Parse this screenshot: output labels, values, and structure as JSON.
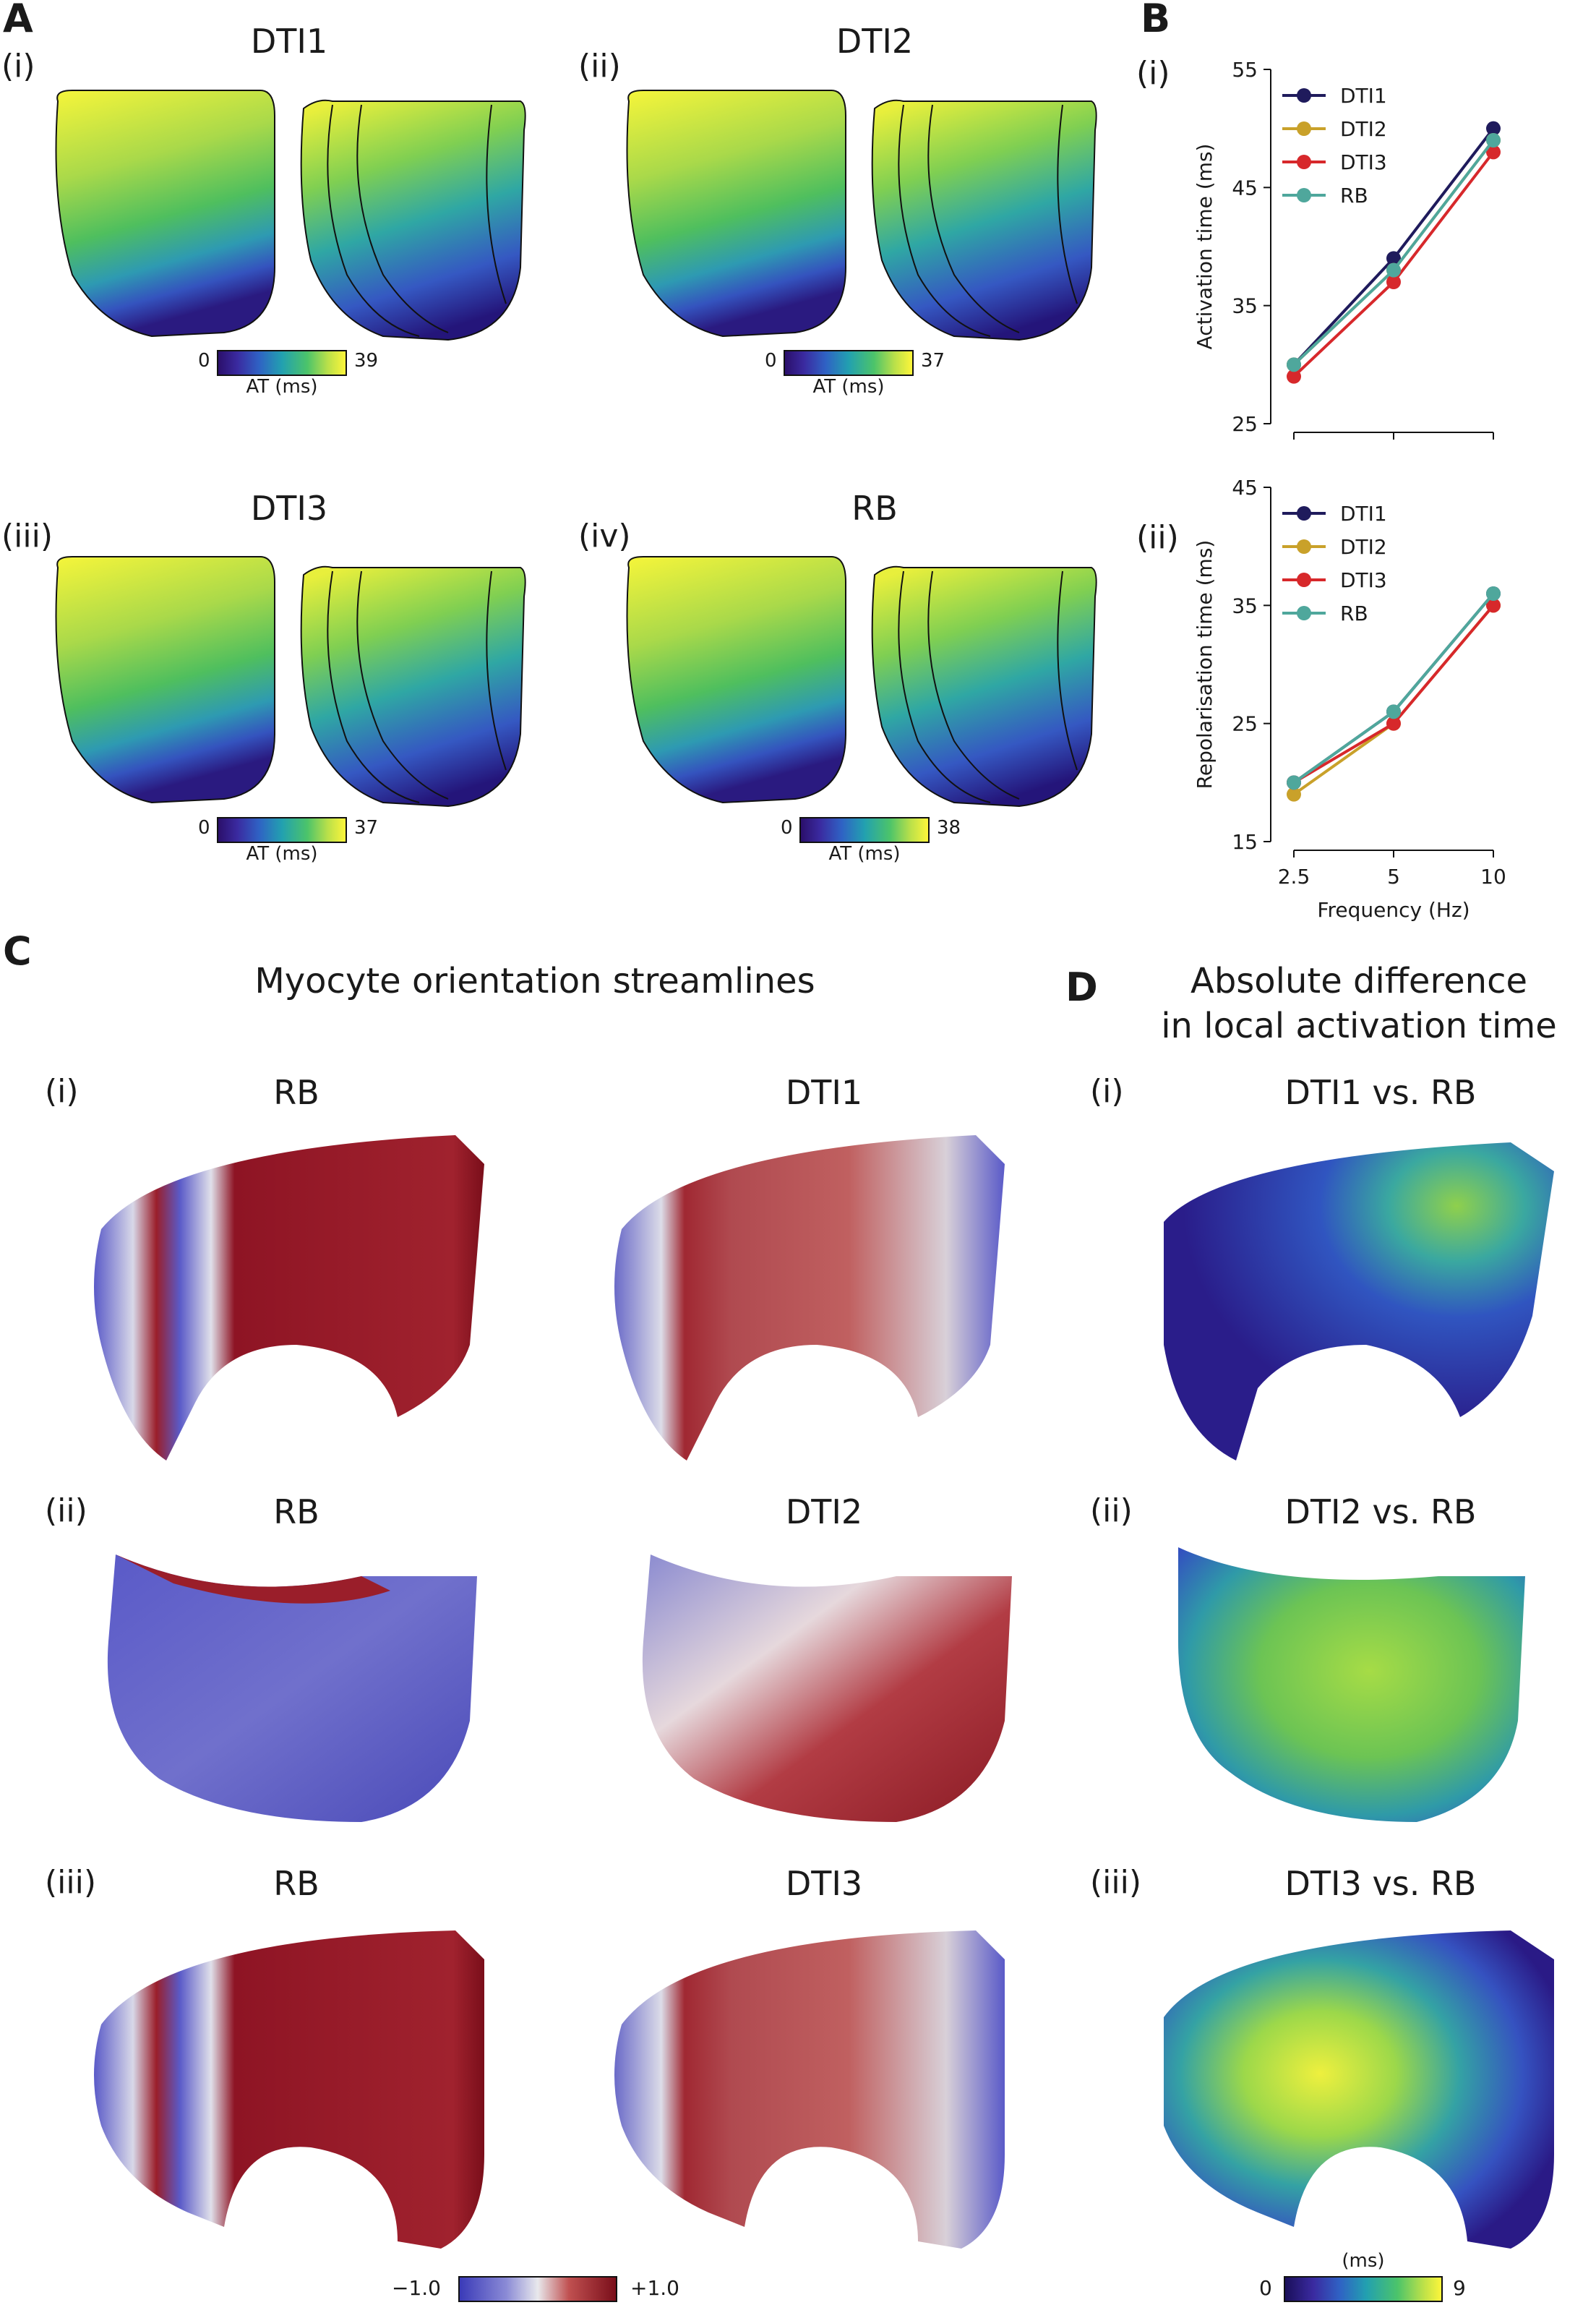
{
  "panelA": {
    "letter": "A",
    "maps": [
      {
        "roman": "(i)",
        "title": "DTI1",
        "cb_min": "0",
        "cb_max": "39",
        "cb_unit": "AT (ms)"
      },
      {
        "roman": "(ii)",
        "title": "DTI2",
        "cb_min": "0",
        "cb_max": "37",
        "cb_unit": "AT (ms)"
      },
      {
        "roman": "(iii)",
        "title": "DTI3",
        "cb_min": "0",
        "cb_max": "37",
        "cb_unit": "AT (ms)"
      },
      {
        "roman": "(iv)",
        "title": "RB",
        "cb_min": "0",
        "cb_max": "38",
        "cb_unit": "AT (ms)"
      }
    ]
  },
  "panelB": {
    "letter": "B",
    "roman_top": "(i)",
    "roman_bottom": "(ii)",
    "legend": [
      "DTI1",
      "DTI2",
      "DTI3",
      "RB"
    ],
    "xlabel": "Frequency (Hz)"
  },
  "panelC": {
    "letter": "C",
    "heading": "Myocyte orientation streamlines",
    "rows": [
      {
        "roman": "(i)",
        "left": "RB",
        "right": "DTI1"
      },
      {
        "roman": "(ii)",
        "left": "RB",
        "right": "DTI2"
      },
      {
        "roman": "(iii)",
        "left": "RB",
        "right": "DTI3"
      }
    ],
    "cb_min": "−1.0",
    "cb_max": "+1.0"
  },
  "panelD": {
    "letter": "D",
    "heading_line1": "Absolute difference",
    "heading_line2": "in local activation time",
    "rows": [
      {
        "roman": "(i)",
        "title": "DTI1 vs. RB"
      },
      {
        "roman": "(ii)",
        "title": "DTI2 vs. RB"
      },
      {
        "roman": "(iii)",
        "title": "DTI3 vs. RB"
      }
    ],
    "cb_min": "0",
    "cb_max": "9",
    "cb_unit": "(ms)"
  },
  "colors": {
    "DTI1": "#1f1b5c",
    "DTI2": "#c9a12a",
    "DTI3": "#d7282b",
    "RB": "#4fa79c"
  },
  "chart_data": [
    {
      "type": "line",
      "x": [
        "2.5",
        "5",
        "10"
      ],
      "ylabel": "Activation time (ms)",
      "yticks": [
        25,
        35,
        45,
        55
      ],
      "ylim": [
        25,
        55
      ],
      "legend_position": "top-left",
      "series": [
        {
          "name": "DTI1",
          "values": [
            30,
            39,
            50
          ]
        },
        {
          "name": "DTI2",
          "values": [
            30,
            38,
            49
          ]
        },
        {
          "name": "DTI3",
          "values": [
            29,
            37,
            48
          ]
        },
        {
          "name": "RB",
          "values": [
            30,
            38,
            49
          ]
        }
      ]
    },
    {
      "type": "line",
      "x": [
        "2.5",
        "5",
        "10"
      ],
      "xlabel": "Frequency (Hz)",
      "ylabel": "Repolarisation time (ms)",
      "yticks": [
        15,
        25,
        35,
        45
      ],
      "ylim": [
        15,
        45
      ],
      "legend_position": "top-left",
      "series": [
        {
          "name": "DTI1",
          "values": [
            20,
            26,
            36
          ]
        },
        {
          "name": "DTI2",
          "values": [
            19,
            25,
            35
          ]
        },
        {
          "name": "DTI3",
          "values": [
            20,
            25,
            35
          ]
        },
        {
          "name": "RB",
          "values": [
            20,
            26,
            36
          ]
        }
      ]
    }
  ]
}
